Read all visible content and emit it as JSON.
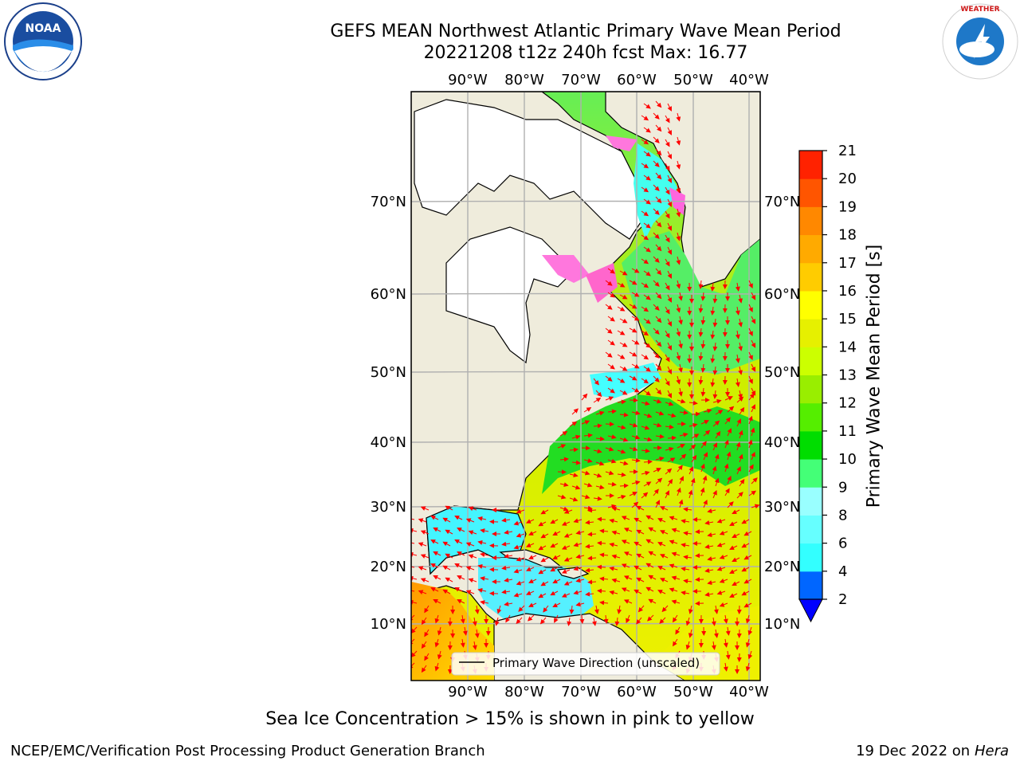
{
  "header": {
    "title": "GEFS MEAN Northwest Atlantic Primary Wave Mean Period",
    "subtitle": "20221208 t12z 240h fcst   Max: 16.77"
  },
  "map": {
    "projection": "polar-stereographic",
    "lon_labels": [
      "90°W",
      "80°W",
      "70°W",
      "60°W",
      "50°W",
      "40°W"
    ],
    "lat_labels": [
      "70°N",
      "60°N",
      "50°N",
      "40°N",
      "30°N",
      "20°N",
      "10°N"
    ],
    "land_color": "#efecdc",
    "ice_region_color": "#ffffff",
    "ocean_fill_note_color": "#e6f000",
    "grid_color": "#b0b0b0",
    "arrow_color": "#ff0000",
    "legend_label": "Primary Wave Direction (unscaled)"
  },
  "colorbar": {
    "label": "Primary Wave Mean Period [s]",
    "ticks": [
      "2",
      "4",
      "6",
      "8",
      "9",
      "10",
      "11",
      "12",
      "13",
      "14",
      "15",
      "16",
      "17",
      "18",
      "19",
      "20",
      "21"
    ],
    "colors": [
      "#0066ff",
      "#00e6ff",
      "#33ffff",
      "#66ffff",
      "#99ffff",
      "#44ff77",
      "#00dd00",
      "#55ee00",
      "#99ee00",
      "#ccff00",
      "#e6f000",
      "#ffff00",
      "#ffcc00",
      "#ffaa00",
      "#ff8800",
      "#ff5500",
      "#ff2200",
      "#ff0000"
    ],
    "under_color": "#0000ff"
  },
  "caption": "Sea Ice Concentration > 15% is shown in pink to yellow",
  "footer": {
    "org": "NCEP/EMC/Verification Post Processing Product Generation Branch",
    "date": "19 Dec 2022 on",
    "host": "Hera"
  },
  "logos": {
    "noaa": "NOAA",
    "nws": "NATIONAL WEATHER SERVICE"
  }
}
